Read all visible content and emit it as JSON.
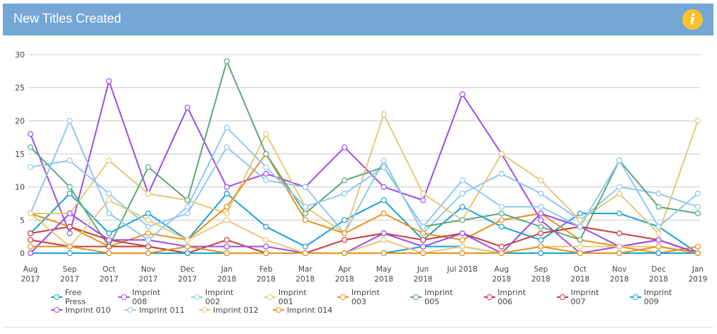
{
  "header": {
    "title": "New Titles Created",
    "info_icon": "i"
  },
  "chart_data": {
    "type": "line",
    "title": "New Titles Created",
    "xlabel": "",
    "ylabel": "",
    "ylim": [
      0,
      30
    ],
    "yticks": [
      "0",
      "5",
      "10",
      "15",
      "20",
      "25",
      "30"
    ],
    "grid": true,
    "legend_position": "bottom",
    "categories": [
      [
        "Aug",
        "2017"
      ],
      [
        "Sep",
        "2017"
      ],
      [
        "Oct",
        "2017"
      ],
      [
        "Nov",
        "2017"
      ],
      [
        "Dec",
        "2017"
      ],
      [
        "Jan",
        "2018"
      ],
      [
        "Feb",
        "2018"
      ],
      [
        "Mar",
        "2018"
      ],
      [
        "Apr",
        "2018"
      ],
      [
        "May",
        "2018"
      ],
      [
        "Jun",
        "2018"
      ],
      [
        "Jul 2018",
        ""
      ],
      [
        "Aug",
        "2018"
      ],
      [
        "Sep",
        "2018"
      ],
      [
        "Oct",
        "2018"
      ],
      [
        "Nov",
        "2018"
      ],
      [
        "Dec",
        "2018"
      ],
      [
        "Jan",
        "2019"
      ]
    ],
    "series": [
      {
        "name": "Free Press",
        "color": "#1aa0d8",
        "values": [
          3,
          9,
          3,
          6,
          2,
          9,
          4,
          1,
          5,
          8,
          2,
          7,
          4,
          2,
          6,
          6,
          4,
          0
        ]
      },
      {
        "name": "Imprint 008",
        "color": "#9b4de8",
        "values": [
          18,
          3,
          26,
          9,
          22,
          10,
          12,
          10,
          16,
          10,
          8,
          24,
          15,
          5,
          0,
          1,
          2,
          0
        ]
      },
      {
        "name": "Imprint 002",
        "color": "#90c8f0",
        "values": [
          13,
          14,
          9,
          4,
          6,
          16,
          11,
          10,
          3,
          14,
          3,
          9,
          12,
          9,
          5,
          10,
          9,
          7
        ]
      },
      {
        "name": "Imprint 001",
        "color": "#e6c87a",
        "values": [
          6,
          6,
          14,
          9,
          8,
          6,
          18,
          7,
          3,
          21,
          9,
          5,
          15,
          11,
          5,
          9,
          3,
          20
        ]
      },
      {
        "name": "Imprint 003",
        "color": "#e8901a",
        "values": [
          6,
          4,
          1,
          3,
          2,
          7,
          15,
          5,
          3,
          6,
          3,
          2,
          5,
          6,
          2,
          1,
          0,
          1
        ]
      },
      {
        "name": "Imprint 005",
        "color": "#5ca878",
        "values": [
          16,
          10,
          1,
          13,
          8,
          29,
          15,
          6,
          11,
          13,
          4,
          5,
          6,
          4,
          2,
          14,
          7,
          6
        ]
      },
      {
        "name": "Imprint 006",
        "color": "#c83c3c",
        "values": [
          3,
          4,
          2,
          1,
          0,
          2,
          0,
          0,
          2,
          3,
          2,
          3,
          1,
          3,
          4,
          3,
          2,
          0
        ]
      },
      {
        "name": "Imprint 007",
        "color": "#c83c3c",
        "values": [
          2,
          1,
          1,
          1,
          0,
          0,
          0,
          0,
          0,
          0,
          0,
          0,
          0,
          0,
          0,
          0,
          0,
          0
        ]
      },
      {
        "name": "Imprint 009",
        "color": "#1aa0d8",
        "values": [
          0,
          0,
          0,
          0,
          0,
          0,
          0,
          0,
          0,
          0,
          1,
          1,
          0,
          0,
          0,
          0,
          0,
          0
        ]
      },
      {
        "name": "Imprint 010",
        "color": "#9b4de8",
        "values": [
          0,
          6,
          2,
          2,
          1,
          1,
          1,
          0,
          0,
          3,
          1,
          3,
          0,
          6,
          4,
          1,
          2,
          0
        ]
      },
      {
        "name": "Imprint 011",
        "color": "#90c8f0",
        "values": [
          6,
          20,
          6,
          2,
          7,
          19,
          13,
          7,
          9,
          13,
          4,
          11,
          7,
          7,
          4,
          14,
          4,
          9
        ]
      },
      {
        "name": "Imprint 012",
        "color": "#e6c87a",
        "values": [
          6,
          1,
          8,
          5,
          2,
          5,
          2,
          0,
          0,
          2,
          0,
          1,
          0,
          1,
          1,
          1,
          1,
          0
        ]
      },
      {
        "name": "Imprint 014",
        "color": "#e8901a",
        "values": [
          1,
          1,
          0,
          0,
          1,
          0,
          0,
          0,
          0,
          0,
          0,
          0,
          0,
          1,
          0,
          0,
          1,
          0
        ]
      }
    ]
  }
}
